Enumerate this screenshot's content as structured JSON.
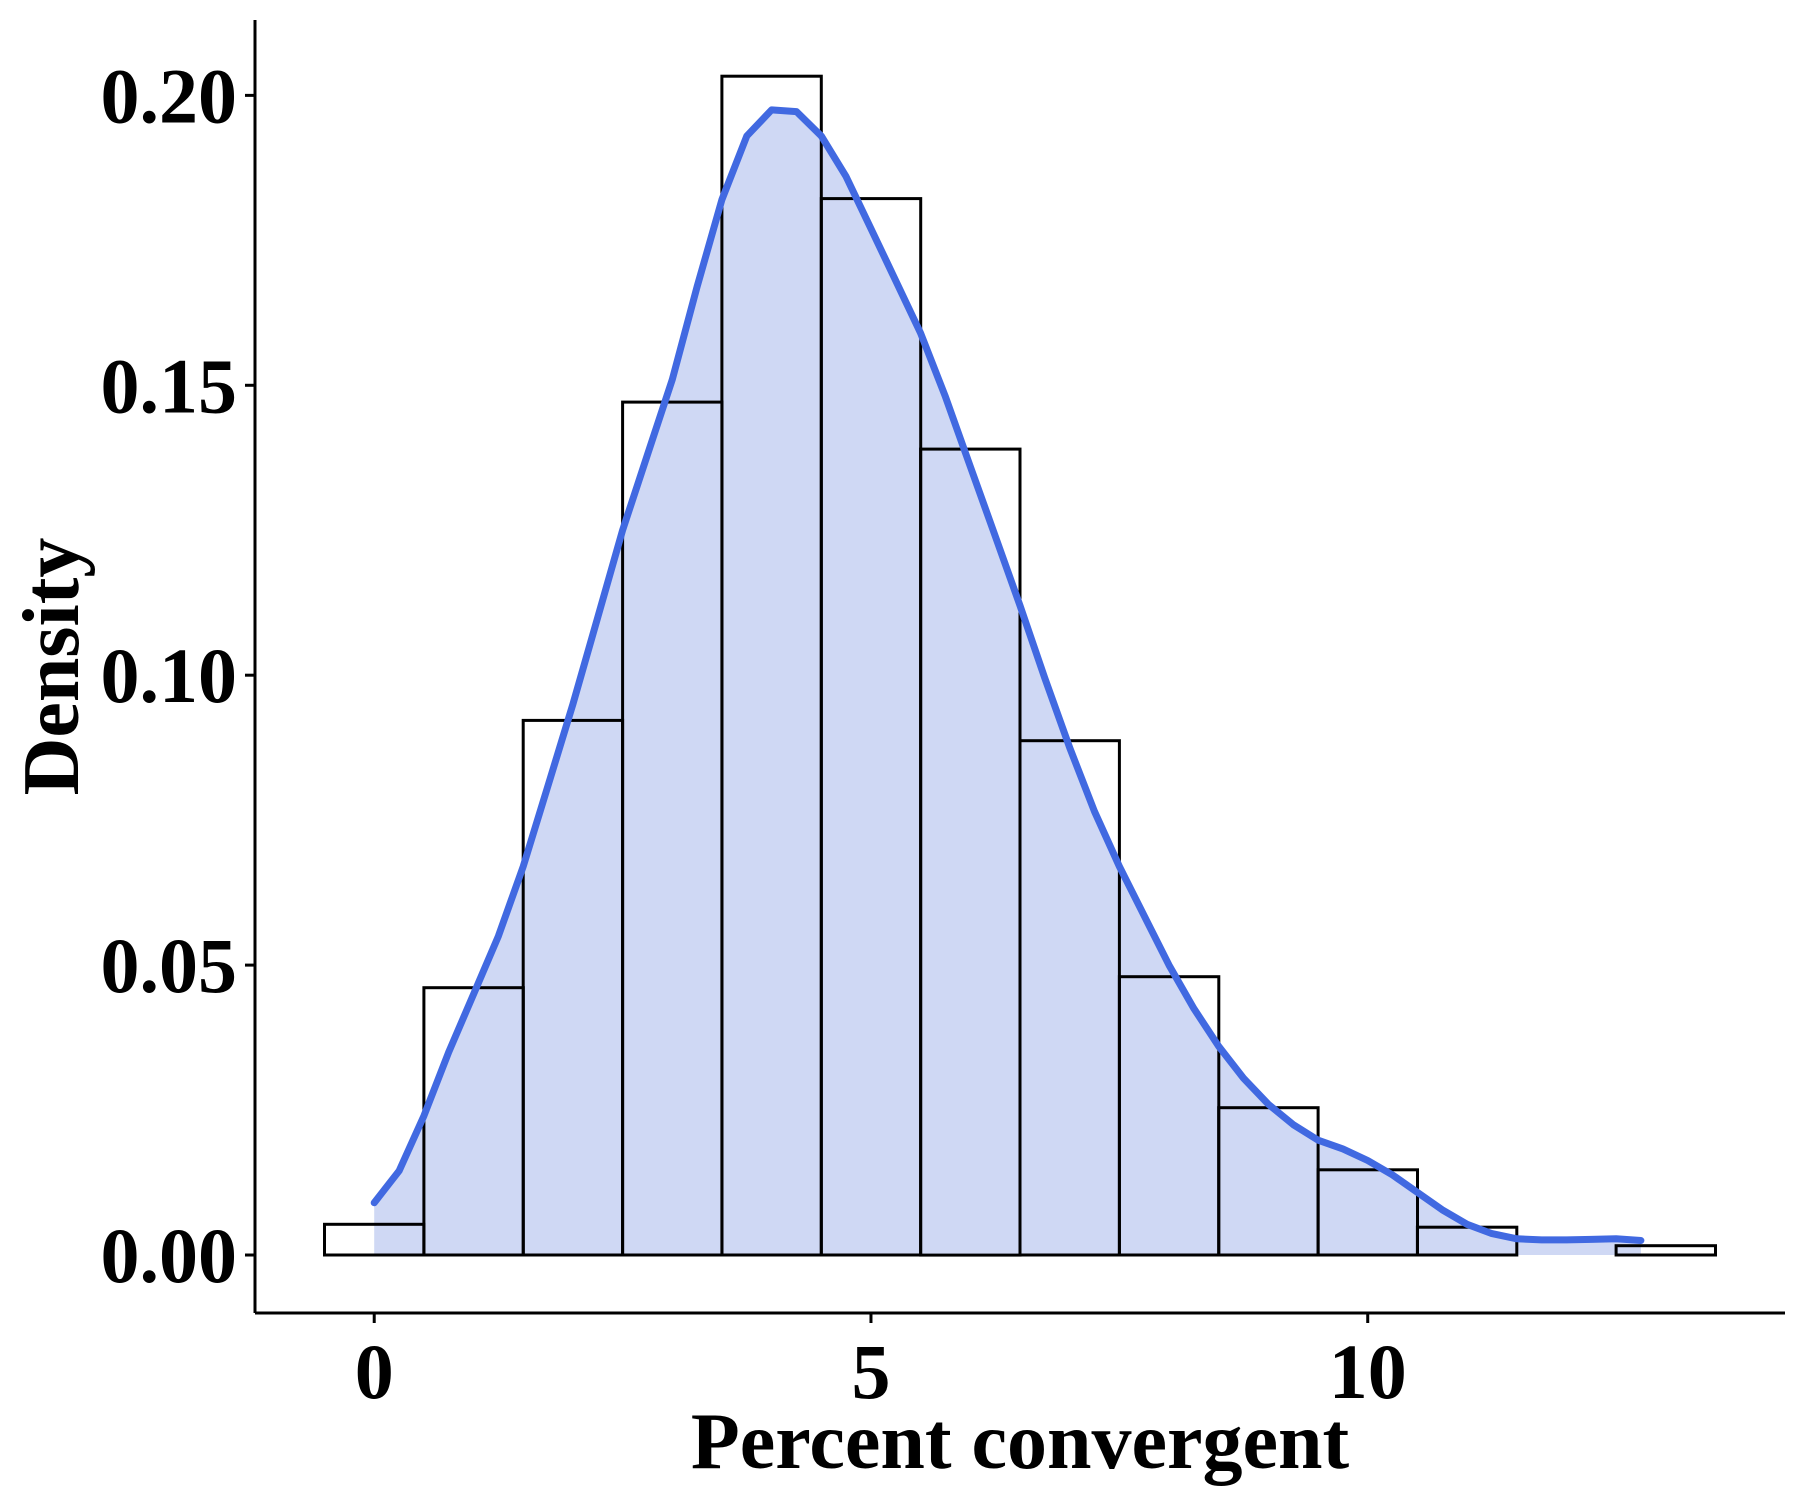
{
  "chart_data": {
    "type": "bar",
    "subtype": "histogram-with-density",
    "title": "",
    "xlabel": "Percent convergent",
    "ylabel": "Density",
    "xlim": [
      -1.2,
      14.2
    ],
    "ylim": [
      -0.01,
      0.213
    ],
    "x_ticks": [
      0,
      5,
      10
    ],
    "x_tick_labels": [
      "0",
      "5",
      "10"
    ],
    "y_ticks": [
      0.0,
      0.05,
      0.1,
      0.15,
      0.2
    ],
    "y_tick_labels": [
      "0.00",
      "0.05",
      "0.10",
      "0.15",
      "0.20"
    ],
    "grid": false,
    "legend": "none",
    "bin_width": 1,
    "bins": [
      {
        "x0": -0.5,
        "x1": 0.5,
        "density": 0.0053
      },
      {
        "x0": 0.5,
        "x1": 1.5,
        "density": 0.0461
      },
      {
        "x0": 1.5,
        "x1": 2.5,
        "density": 0.0922
      },
      {
        "x0": 2.5,
        "x1": 3.5,
        "density": 0.1471
      },
      {
        "x0": 3.5,
        "x1": 4.5,
        "density": 0.2033
      },
      {
        "x0": 4.5,
        "x1": 5.5,
        "density": 0.1822
      },
      {
        "x0": 5.5,
        "x1": 6.5,
        "density": 0.139
      },
      {
        "x0": 6.5,
        "x1": 7.5,
        "density": 0.0887
      },
      {
        "x0": 7.5,
        "x1": 8.5,
        "density": 0.048
      },
      {
        "x0": 8.5,
        "x1": 9.5,
        "density": 0.0254
      },
      {
        "x0": 9.5,
        "x1": 10.5,
        "density": 0.0147
      },
      {
        "x0": 10.5,
        "x1": 11.5,
        "density": 0.0048
      },
      {
        "x0": 11.5,
        "x1": 12.5,
        "density": 0.0
      },
      {
        "x0": 12.5,
        "x1": 13.5,
        "density": 0.0016
      }
    ],
    "density_curve": {
      "x": [
        0,
        0.25,
        0.5,
        0.75,
        1.0,
        1.25,
        1.5,
        1.75,
        2.0,
        2.25,
        2.5,
        2.75,
        3.0,
        3.25,
        3.5,
        3.75,
        4.0,
        4.25,
        4.5,
        4.75,
        5.0,
        5.25,
        5.5,
        5.75,
        6.0,
        6.25,
        6.5,
        6.75,
        7.0,
        7.25,
        7.5,
        7.75,
        8.0,
        8.25,
        8.5,
        8.75,
        9.0,
        9.25,
        9.5,
        9.75,
        10.0,
        10.25,
        10.5,
        10.75,
        11.0,
        11.25,
        11.5,
        11.75,
        12.0,
        12.25,
        12.5,
        12.75
      ],
      "y": [
        0.009,
        0.0145,
        0.024,
        0.035,
        0.045,
        0.055,
        0.067,
        0.081,
        0.095,
        0.11,
        0.125,
        0.138,
        0.151,
        0.167,
        0.182,
        0.193,
        0.1975,
        0.1972,
        0.193,
        0.186,
        0.177,
        0.168,
        0.159,
        0.148,
        0.136,
        0.124,
        0.112,
        0.0995,
        0.0875,
        0.0765,
        0.067,
        0.0585,
        0.05,
        0.0425,
        0.036,
        0.0305,
        0.026,
        0.0225,
        0.0198,
        0.0183,
        0.0163,
        0.0138,
        0.0108,
        0.0078,
        0.0053,
        0.0037,
        0.0028,
        0.0026,
        0.0026,
        0.0027,
        0.0028,
        0.0025
      ]
    },
    "colors": {
      "bar_outline": "#000000",
      "density_fill": "#cfd8f4",
      "density_line": "#4169e1",
      "axis": "#000000"
    }
  }
}
